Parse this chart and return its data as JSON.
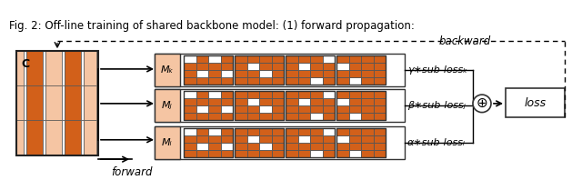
{
  "fig_width": 6.4,
  "fig_height": 1.98,
  "dpi": 100,
  "bg_color": "#ffffff",
  "orange_light": "#F5C5A3",
  "orange_dark": "#D2601A",
  "orange_med": "#E8956A",
  "caption": "Fig. 2: Off-line training of shared backbone model: (1) forward propagation:",
  "labels": {
    "C": "C",
    "Mi": "Mᵢ",
    "Mj": "Mⱼ",
    "Mk": "Mₖ",
    "forward": "forward",
    "backward": "backward",
    "loss": "loss",
    "alpha": "α∗sub-lossᵢ",
    "beta": "β∗sub-lossⱼ",
    "gamma": "γ∗sub-lossₖ",
    "plus": "⊕"
  }
}
